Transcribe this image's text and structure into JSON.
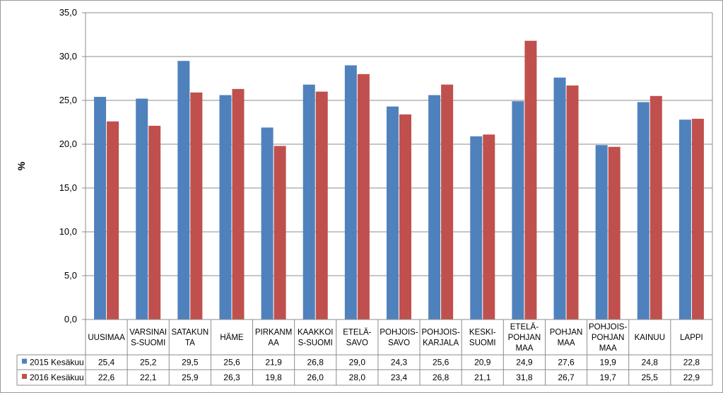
{
  "chart_data": {
    "type": "bar",
    "ylabel": "%",
    "ylim": [
      0,
      35
    ],
    "ytick_labels": [
      "0,0",
      "5,0",
      "10,0",
      "15,0",
      "20,0",
      "25,0",
      "30,0",
      "35,0"
    ],
    "grid": true,
    "categories": [
      [
        "UUSIMAA"
      ],
      [
        "VARSINAI",
        "S-SUOMI"
      ],
      [
        "SATAKUN",
        "TA"
      ],
      [
        "HÄME"
      ],
      [
        "PIRKANM",
        "AA"
      ],
      [
        "KAAKKOI",
        "S-SUOMI"
      ],
      [
        "ETELÄ-",
        "SAVO"
      ],
      [
        "POHJOIS-",
        "SAVO"
      ],
      [
        "POHJOIS-",
        "KARJALA"
      ],
      [
        "KESKI-",
        "SUOMI"
      ],
      [
        "ETELÄ-",
        "POHJAN",
        "MAA"
      ],
      [
        "POHJAN",
        "MAA"
      ],
      [
        "POHJOIS-",
        "POHJAN",
        "MAA"
      ],
      [
        "KAINUU"
      ],
      [
        "LAPPI"
      ]
    ],
    "series": [
      {
        "name": "2015 Kesäkuu",
        "color": "#4F81BD",
        "values": [
          25.4,
          25.2,
          29.5,
          25.6,
          21.9,
          26.8,
          29.0,
          24.3,
          25.6,
          20.9,
          24.9,
          27.6,
          19.9,
          24.8,
          22.8
        ],
        "labels": [
          "25,4",
          "25,2",
          "29,5",
          "25,6",
          "21,9",
          "26,8",
          "29,0",
          "24,3",
          "25,6",
          "20,9",
          "24,9",
          "27,6",
          "19,9",
          "24,8",
          "22,8"
        ]
      },
      {
        "name": "2016 Kesäkuu",
        "color": "#C0504D",
        "values": [
          22.6,
          22.1,
          25.9,
          26.3,
          19.8,
          26.0,
          28.0,
          23.4,
          26.8,
          21.1,
          31.8,
          26.7,
          19.7,
          25.5,
          22.9
        ],
        "labels": [
          "22,6",
          "22,1",
          "25,9",
          "26,3",
          "19,8",
          "26,0",
          "28,0",
          "23,4",
          "26,8",
          "21,1",
          "31,8",
          "26,7",
          "19,7",
          "25,5",
          "22,9"
        ]
      }
    ],
    "legend": "data-table"
  }
}
